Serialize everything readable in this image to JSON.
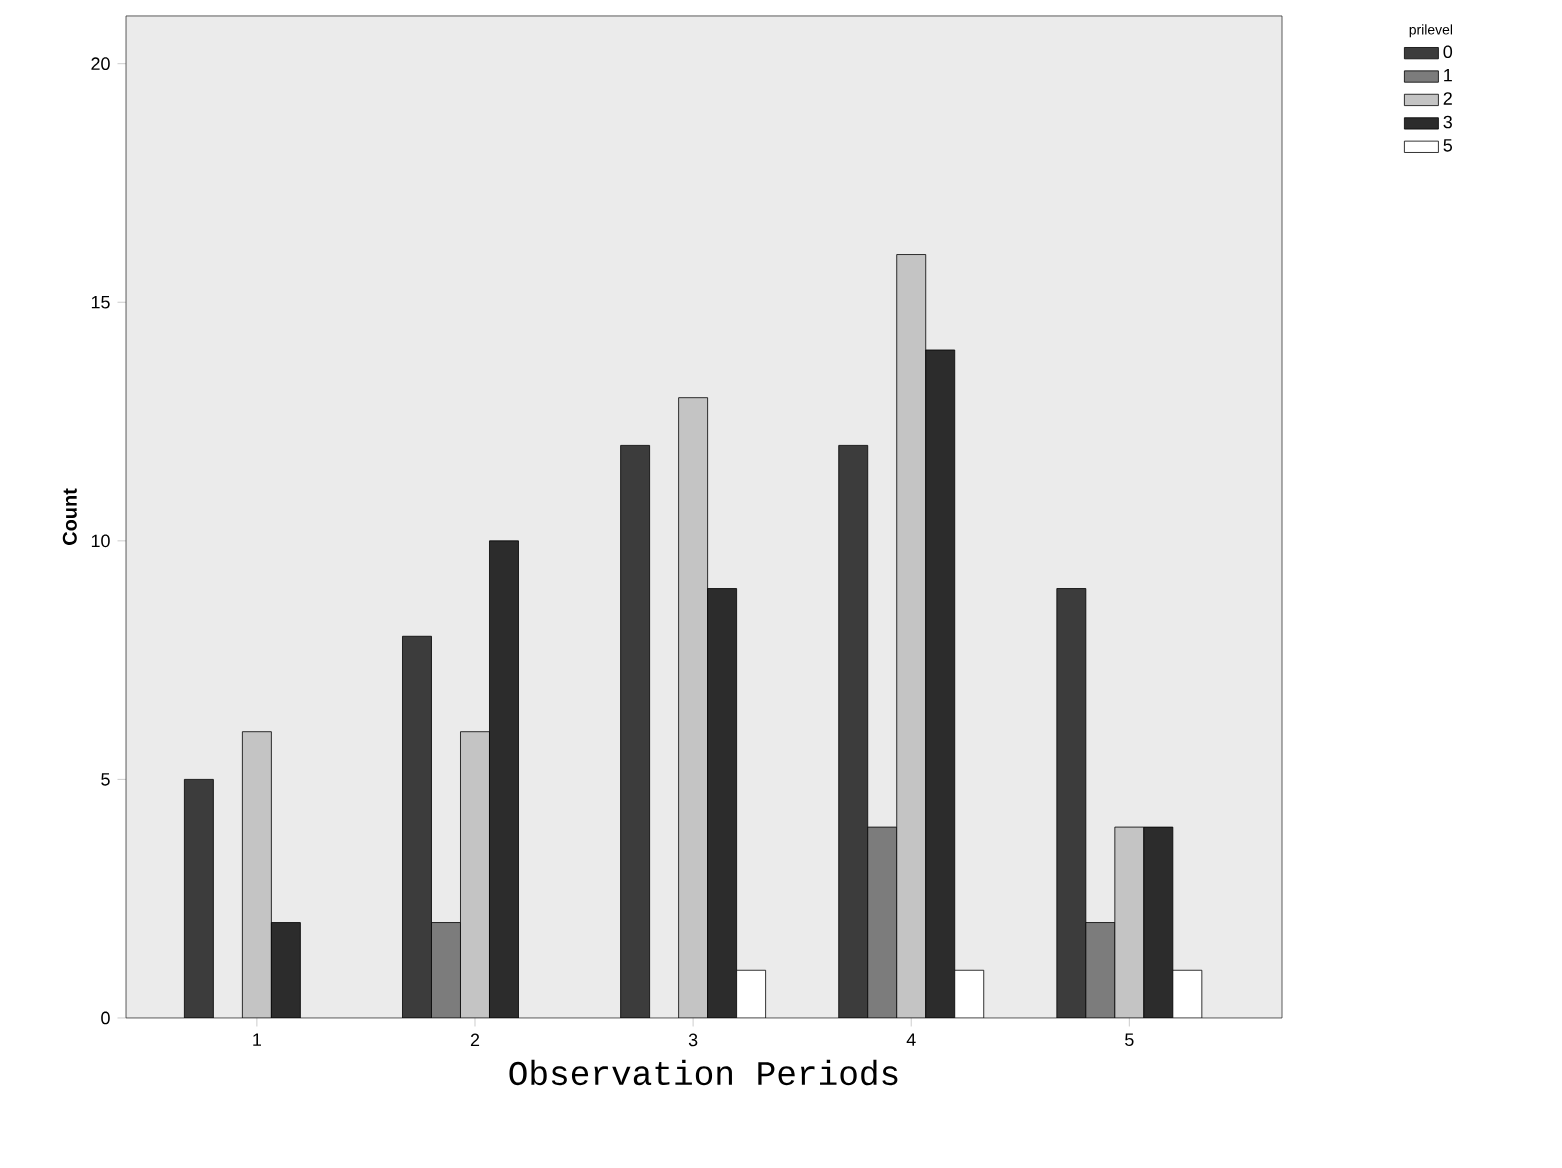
{
  "chart_data": {
    "type": "bar",
    "xlabel": "Observation Periods",
    "ylabel": "Count",
    "legend_title": "prilevel",
    "categories": [
      "1",
      "2",
      "3",
      "4",
      "5"
    ],
    "series": [
      {
        "name": "0",
        "color": "#3c3c3c",
        "values": [
          5,
          8,
          12,
          12,
          9
        ]
      },
      {
        "name": "1",
        "color": "#7c7c7c",
        "values": [
          null,
          2,
          null,
          4,
          2
        ]
      },
      {
        "name": "2",
        "color": "#c4c4c4",
        "values": [
          6,
          6,
          13,
          16,
          4
        ]
      },
      {
        "name": "3",
        "color": "#2c2c2c",
        "values": [
          2,
          10,
          9,
          14,
          4
        ]
      },
      {
        "name": "5",
        "color": "#ffffff",
        "values": [
          null,
          null,
          1,
          1,
          1
        ]
      }
    ],
    "ylim": [
      0,
      21
    ],
    "yticks": [
      0,
      5,
      10,
      15,
      20
    ],
    "legend": "top right"
  }
}
